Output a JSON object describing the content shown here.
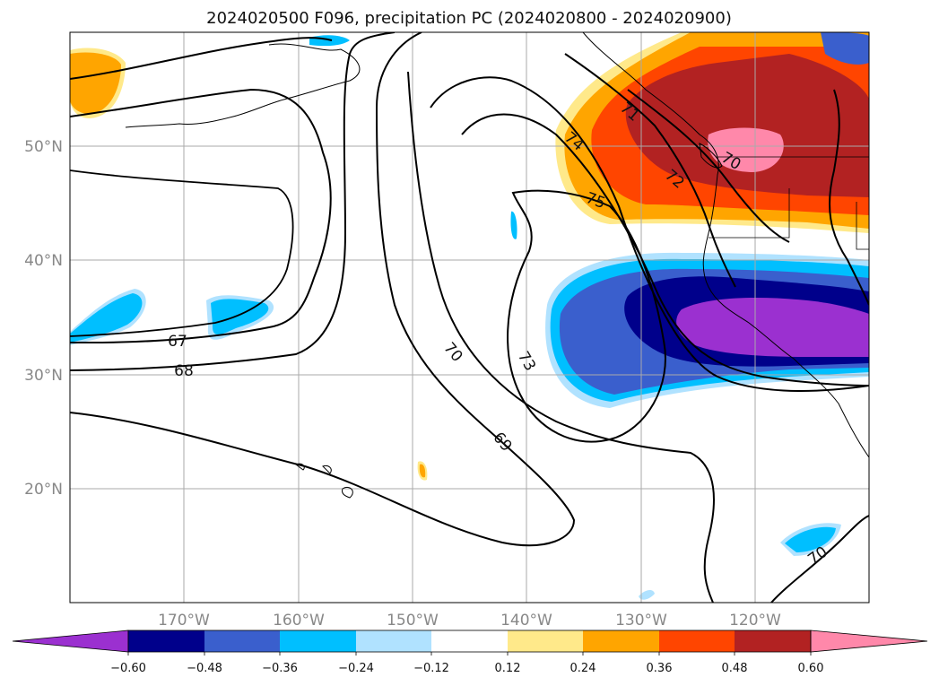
{
  "title": "2024020500 F096, precipitation PC (2024020800 - 2024020900)",
  "map": {
    "lat_labels": [
      "50°N",
      "40°N",
      "30°N",
      "20°N"
    ],
    "lon_labels": [
      "170°W",
      "160°W",
      "150°W",
      "140°W",
      "130°W",
      "120°W"
    ],
    "contour_labels": [
      "67",
      "68",
      "69",
      "70",
      "70",
      "70",
      "71",
      "72",
      "73",
      "74",
      "75"
    ]
  },
  "colorbar": {
    "ticks": [
      "−0.60",
      "−0.48",
      "−0.36",
      "−0.24",
      "−0.12",
      "0.12",
      "0.24",
      "0.36",
      "0.48",
      "0.60"
    ],
    "colors": [
      "#9b30d0",
      "#00008b",
      "#3a5fcd",
      "#00bfff",
      "#b0e2ff",
      "#ffffff",
      "#ffe98a",
      "#ffa500",
      "#ff4500",
      "#b22222",
      "#ff88aa",
      "#ff88aa"
    ]
  },
  "colors": {
    "purple": "#9b30d0",
    "navy": "#00008b",
    "royal": "#3a5fcd",
    "sky": "#00bfff",
    "light_sky": "#b0e2ff",
    "yellow": "#ffe98a",
    "orange": "#ffa500",
    "red_orange": "#ff4500",
    "firebrick": "#b22222",
    "pink": "#ff88aa"
  }
}
